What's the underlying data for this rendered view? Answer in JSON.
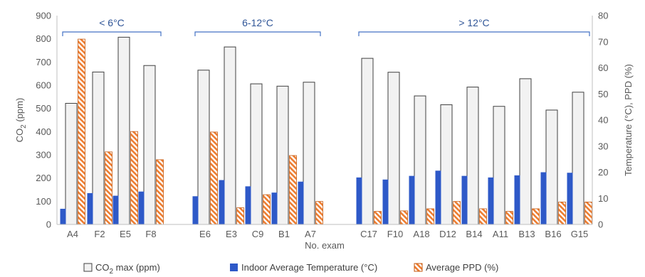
{
  "chart_data": {
    "type": "bar",
    "categories": [
      "A4",
      "F2",
      "E5",
      "F8",
      "E6",
      "E3",
      "C9",
      "B1",
      "A7",
      "C17",
      "F10",
      "A18",
      "D12",
      "B14",
      "A11",
      "B13",
      "B16",
      "G15"
    ],
    "series": [
      {
        "name": "CO2 max (ppm)",
        "axis": "left",
        "color": "#f2f2f2",
        "stroke": "#404040",
        "values": [
          522,
          657,
          807,
          685,
          665,
          765,
          606,
          596,
          613,
          716,
          656,
          554,
          516,
          592,
          509,
          628,
          493,
          570
        ]
      },
      {
        "name": "Indoor Average Temperature (°C)",
        "axis": "right",
        "color": "#2e59c8",
        "values": [
          6,
          12,
          11,
          12.6,
          10.8,
          17,
          14.6,
          12.2,
          16.4,
          18,
          17.2,
          18.6,
          20.6,
          18.6,
          18,
          18.8,
          20,
          19.8
        ]
      },
      {
        "name": "Average PPD (%)",
        "axis": "right",
        "color": "#f4b183",
        "stroke": "#c55a11",
        "hatch": true,
        "values": [
          71,
          27.8,
          35.6,
          24.8,
          35.4,
          6.4,
          11.4,
          26.4,
          8.8,
          5,
          5.2,
          6,
          8.8,
          6,
          5,
          6,
          8.6,
          8.6
        ]
      }
    ],
    "groups": [
      {
        "label": "< 6°C",
        "from": 0,
        "to": 3
      },
      {
        "label": "6-12°C",
        "from": 4,
        "to": 8
      },
      {
        "label": "> 12°C",
        "from": 9,
        "to": 17
      }
    ],
    "xlabel": "No. exam",
    "ylabel_left": {
      "main": "CO",
      "sub": "2",
      "rest": " (ppm)"
    },
    "ylabel_right": "Temperature (°C), PPD (%)",
    "ylim_left": [
      0,
      900
    ],
    "ylim_right": [
      0,
      80
    ],
    "yticks_left": [
      0,
      100,
      200,
      300,
      400,
      500,
      600,
      700,
      800,
      900
    ],
    "yticks_right": [
      0,
      10,
      20,
      30,
      40,
      50,
      60,
      70,
      80
    ],
    "legend": [
      {
        "main": "CO",
        "sub": "2",
        "rest": " max (ppm)",
        "series": 0
      },
      {
        "main": "Indoor Average Temperature (°C)",
        "sub": "",
        "rest": "",
        "series": 1
      },
      {
        "main": "Average PPD (%)",
        "sub": "",
        "rest": "",
        "series": 2
      }
    ],
    "legend_position": "bottom",
    "grid": false
  }
}
